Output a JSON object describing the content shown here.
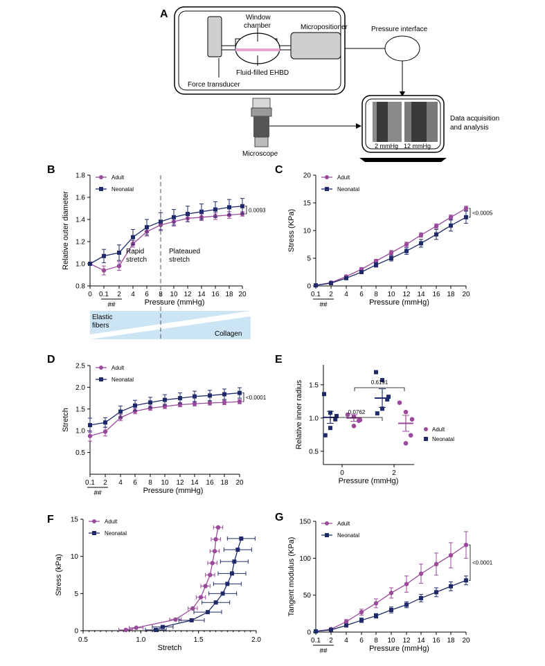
{
  "colors": {
    "adult": "#9b4a9b",
    "neonatal": "#1f2a6b",
    "band": "#cce5f4"
  },
  "panel_A": {
    "label": "A",
    "window_chamber": "Window\nchamber",
    "micropositioner": "Micropositioner",
    "fluid_filled": "Fluid-filled EHBD",
    "force_transducer": "Force transducer",
    "pressure_interface": "Pressure interface",
    "microscope": "Microscope",
    "data_acquisition": "Data acquisition\nand analysis",
    "img_label_1": "2 mmHg",
    "img_label_2": "12 mmHg"
  },
  "band": {
    "elastic": "Elastic\nfibers",
    "collagen": "Collagen"
  },
  "chart_data": [
    {
      "id": "B",
      "panel_label": "B",
      "type": "line",
      "ylabel": "Relative outer diameter",
      "xlabel": "Pressure (mmHg)",
      "ylim": [
        0.8,
        1.8
      ],
      "yticks": [
        "0.8",
        "1.0",
        "1.2",
        "1.4",
        "1.6",
        "1.8"
      ],
      "xticks": [
        "0",
        "0.1",
        "2",
        "4",
        "6",
        "8",
        "10",
        "12",
        "14",
        "16",
        "18",
        "20"
      ],
      "under_tick": "##",
      "pvalue": "0.0093",
      "annotations": [
        "Rapid\nstretch",
        "Plateaued\nstretch"
      ],
      "series": [
        {
          "name": "Adult",
          "values": [
            1.0,
            0.94,
            0.98,
            1.18,
            1.29,
            1.35,
            1.38,
            1.41,
            1.42,
            1.43,
            1.44,
            1.45
          ],
          "err": [
            0.0,
            0.04,
            0.04,
            0.03,
            0.04,
            0.04,
            0.04,
            0.03,
            0.03,
            0.03,
            0.03,
            0.02
          ]
        },
        {
          "name": "Neonatal",
          "values": [
            1.0,
            1.07,
            1.1,
            1.24,
            1.33,
            1.38,
            1.42,
            1.45,
            1.47,
            1.49,
            1.51,
            1.52
          ],
          "err": [
            0.0,
            0.06,
            0.07,
            0.07,
            0.07,
            0.08,
            0.07,
            0.07,
            0.07,
            0.07,
            0.07,
            0.07
          ]
        }
      ]
    },
    {
      "id": "C",
      "panel_label": "C",
      "type": "line",
      "ylabel": "Stress (KPa)",
      "xlabel": "Pressure (mmHg)",
      "ylim": [
        0,
        20
      ],
      "yticks": [
        "0",
        "5",
        "10",
        "15",
        "20"
      ],
      "xticks": [
        "0.1",
        "2",
        "4",
        "6",
        "8",
        "10",
        "12",
        "14",
        "16",
        "18",
        "20"
      ],
      "under_tick": "##",
      "pvalue": "<0.0005",
      "series": [
        {
          "name": "Adult",
          "values": [
            0.1,
            0.6,
            1.7,
            3.0,
            4.5,
            6.0,
            7.5,
            9.2,
            10.8,
            12.4,
            14.0
          ],
          "err": [
            0.05,
            0.1,
            0.2,
            0.3,
            0.3,
            0.4,
            0.4,
            0.4,
            0.4,
            0.4,
            0.4
          ]
        },
        {
          "name": "Neonatal",
          "values": [
            0.1,
            0.5,
            1.4,
            2.5,
            3.8,
            5.0,
            6.3,
            7.7,
            9.3,
            10.9,
            12.4
          ],
          "err": [
            0.05,
            0.1,
            0.2,
            0.3,
            0.4,
            0.5,
            0.6,
            0.7,
            0.9,
            1.0,
            1.1
          ]
        }
      ]
    },
    {
      "id": "D",
      "panel_label": "D",
      "type": "line",
      "ylabel": "Stretch",
      "xlabel": "Pressure (mmHg)",
      "ylim": [
        0.0,
        2.5
      ],
      "yticks": [
        "0.5",
        "1.0",
        "1.5",
        "2.0",
        "2.5"
      ],
      "xticks": [
        "0.1",
        "2",
        "4",
        "6",
        "8",
        "10",
        "12",
        "14",
        "16",
        "18",
        "20"
      ],
      "under_tick": "##",
      "pvalue": "<0.0001",
      "series": [
        {
          "name": "Adult",
          "values": [
            0.88,
            0.98,
            1.3,
            1.45,
            1.52,
            1.56,
            1.6,
            1.62,
            1.64,
            1.65,
            1.67
          ],
          "err": [
            0.12,
            0.1,
            0.07,
            0.06,
            0.05,
            0.05,
            0.05,
            0.05,
            0.05,
            0.05,
            0.05
          ]
        },
        {
          "name": "Neonatal",
          "values": [
            1.13,
            1.19,
            1.44,
            1.58,
            1.65,
            1.71,
            1.75,
            1.79,
            1.81,
            1.84,
            1.87
          ],
          "err": [
            0.16,
            0.11,
            0.13,
            0.12,
            0.12,
            0.12,
            0.12,
            0.12,
            0.12,
            0.12,
            0.12
          ]
        }
      ]
    },
    {
      "id": "E",
      "panel_label": "E",
      "type": "scatter",
      "ylabel": "Relative inner radius",
      "xlabel": "Pressure (mmHg)",
      "ylim": [
        0.3,
        1.8
      ],
      "yticks": [
        "0.5",
        "1.0",
        "1.5"
      ],
      "xticks": [
        "0",
        "2"
      ],
      "comparisons": [
        "0.6191",
        "0.0762"
      ],
      "groups": [
        {
          "name": "Neonatal",
          "x": 0,
          "points": [
            1.36,
            1.08,
            1.03,
            0.98,
            0.85,
            0.74
          ],
          "mean": 1.01,
          "sem": 0.09
        },
        {
          "name": "Adult",
          "x": 0,
          "points": [
            1.05,
            1.02,
            0.97,
            0.96,
            0.88
          ],
          "mean": 1.0,
          "sem": 0.05
        },
        {
          "name": "Neonatal",
          "x": 2,
          "points": [
            1.69,
            1.57,
            1.32,
            1.28,
            1.14,
            1.07
          ],
          "mean": 1.3,
          "sem": 0.14
        },
        {
          "name": "Adult",
          "x": 2,
          "points": [
            1.23,
            1.09,
            0.98,
            0.74,
            0.62
          ],
          "mean": 0.92,
          "sem": 0.12
        }
      ]
    },
    {
      "id": "F",
      "panel_label": "F",
      "type": "line",
      "ylabel": "Stress (kPa)",
      "xlabel": "Stretch",
      "xlim": [
        0.5,
        2.0
      ],
      "ylim": [
        0,
        15
      ],
      "xticks": [
        "0.5",
        "1.0",
        "1.5",
        "2.0"
      ],
      "yticks": [
        "0",
        "5",
        "10",
        "15"
      ],
      "series": [
        {
          "name": "Adult",
          "x": [
            0.87,
            0.96,
            1.3,
            1.45,
            1.52,
            1.56,
            1.6,
            1.62,
            1.64,
            1.65,
            1.67
          ],
          "y": [
            0.1,
            0.4,
            1.5,
            3.0,
            4.5,
            6.0,
            7.5,
            9.1,
            10.7,
            12.3,
            13.9
          ],
          "xerr": [
            0.06,
            0.06,
            0.05,
            0.04,
            0.04,
            0.04,
            0.04,
            0.04,
            0.04,
            0.04,
            0.04
          ]
        },
        {
          "name": "Neonatal",
          "x": [
            1.13,
            1.19,
            1.44,
            1.58,
            1.65,
            1.71,
            1.75,
            1.79,
            1.81,
            1.84,
            1.87
          ],
          "y": [
            0.1,
            0.5,
            1.4,
            2.5,
            3.8,
            5.0,
            6.3,
            7.7,
            9.3,
            10.9,
            12.4
          ],
          "xerr": [
            0.09,
            0.09,
            0.11,
            0.12,
            0.12,
            0.12,
            0.12,
            0.12,
            0.12,
            0.12,
            0.12
          ]
        }
      ]
    },
    {
      "id": "G",
      "panel_label": "G",
      "type": "line",
      "ylabel": "Tangent modulus (KPa)",
      "xlabel": "Pressure (mmHg)",
      "ylim": [
        0,
        150
      ],
      "yticks": [
        "0",
        "50",
        "100",
        "150"
      ],
      "xticks": [
        "0.1",
        "2",
        "4",
        "6",
        "8",
        "10",
        "12",
        "14",
        "16",
        "18",
        "20"
      ],
      "under_tick": "##",
      "pvalue": "<0.0001",
      "series": [
        {
          "name": "Adult",
          "values": [
            1,
            4,
            14,
            27,
            39,
            53,
            65,
            79,
            92,
            104,
            118
          ],
          "err": [
            0.5,
            1,
            3,
            4,
            6,
            7,
            11,
            13,
            15,
            17,
            18
          ]
        },
        {
          "name": "Neonatal",
          "values": [
            1,
            3,
            9,
            16,
            22,
            30,
            37,
            46,
            54,
            62,
            70
          ],
          "err": [
            0.5,
            1,
            2,
            3,
            3,
            4,
            4,
            5,
            6,
            6,
            6
          ]
        }
      ]
    }
  ]
}
